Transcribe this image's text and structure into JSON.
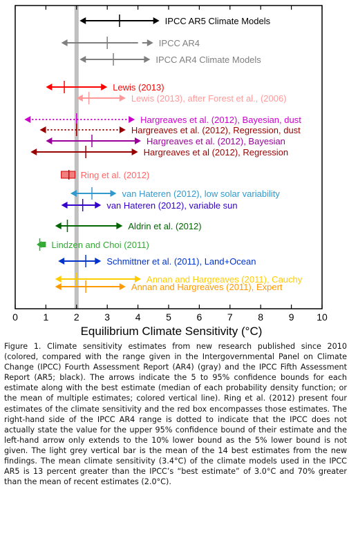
{
  "chart_data": {
    "type": "interval",
    "xlabel": "Equilibrium Climate Sensitivity (°C)",
    "xlim": [
      0,
      10
    ],
    "xticks": [
      "0",
      "1",
      "2",
      "3",
      "4",
      "5",
      "6",
      "7",
      "8",
      "9",
      "10"
    ],
    "reference_line": {
      "value": 2.0,
      "color": "#c0c0c0"
    },
    "estimates": [
      {
        "label": "IPCC AR5 Climate Models",
        "low": 2.1,
        "high": 4.7,
        "best": 3.4,
        "color": "#000000",
        "style": "solid"
      },
      {
        "label": "IPCC AR4",
        "low": 1.5,
        "high": 4.5,
        "best": 3.0,
        "color": "#7f7f7f",
        "style": "solid-dashed-right"
      },
      {
        "label": "IPCC AR4 Climate Models",
        "low": 2.1,
        "high": 4.4,
        "best": 3.2,
        "color": "#7f7f7f",
        "style": "solid"
      },
      {
        "label": "Lewis (2013)",
        "low": 1.0,
        "high": 3.0,
        "best": 1.6,
        "color": "#ff0000",
        "style": "solid"
      },
      {
        "label": "Lewis (2013), after Forest et al., (2006)",
        "low": 2.0,
        "high": 3.6,
        "best": 2.4,
        "color": "#ff9999",
        "style": "solid"
      },
      {
        "label": "Hargreaves et al. (2012), Bayesian, dust",
        "low": 0.3,
        "high": 3.9,
        "best": 2.0,
        "color": "#cc00cc",
        "style": "dotted"
      },
      {
        "label": "Hargreaves et al. (2012), Regression, dust",
        "low": 0.8,
        "high": 3.6,
        "best": 2.0,
        "color": "#990000",
        "style": "dotted"
      },
      {
        "label": "Hargreaves et al. (2012), Bayesian",
        "low": 1.0,
        "high": 4.1,
        "best": 2.5,
        "color": "#990099",
        "style": "solid"
      },
      {
        "label": "Hargreaves et al (2012), Regression",
        "low": 0.5,
        "high": 4.0,
        "best": 2.3,
        "color": "#990000",
        "style": "solid"
      },
      {
        "label": "Ring et al. (2012)",
        "low": 1.5,
        "high": 1.95,
        "best": 1.75,
        "color": "#ff6666",
        "style": "box"
      },
      {
        "label": "van Hateren (2012), low solar variability",
        "low": 1.8,
        "high": 3.3,
        "best": 2.5,
        "color": "#3399cc",
        "style": "solid"
      },
      {
        "label": "van Hateren (2012), variable sun",
        "low": 1.5,
        "high": 2.8,
        "best": 2.2,
        "color": "#3300cc",
        "style": "solid"
      },
      {
        "label": "Aldrin et al. (2012)",
        "low": 1.3,
        "high": 3.5,
        "best": 1.7,
        "color": "#006600",
        "style": "solid"
      },
      {
        "label": "Lindzen and Choi  (2011)",
        "low": 0.7,
        "high": 1.0,
        "best": 0.8,
        "color": "#33aa33",
        "style": "solid"
      },
      {
        "label": "Schmittner et al.  (2011), Land+Ocean",
        "low": 1.4,
        "high": 2.8,
        "best": 2.3,
        "color": "#0033cc",
        "style": "solid"
      },
      {
        "label": "Annan and Hargreaves (2011), Cauchy",
        "low": 1.3,
        "high": 4.1,
        "best": 2.0,
        "color": "#ffcc00",
        "style": "solid"
      },
      {
        "label": "Annan and Hargreaves (2011), Expert",
        "low": 1.3,
        "high": 3.6,
        "best": 2.3,
        "color": "#ff9900",
        "style": "solid"
      }
    ]
  },
  "caption": "Figure 1. Climate sensitivity estimates from new research published since 2010 (colored, compared with the range given in the Intergovernmental Panel on Climate Change (IPCC) Fourth Assessment Report (AR4) (gray) and the IPCC Fifth Assessment Report (AR5; black). The arrows indicate the 5 to 95% confidence bounds for each estimate along with the best estimate (median of each probability density function; or the mean of multiple estimates; colored vertical line). Ring et al. (2012) present four estimates of the climate sensitivity and the red box encompasses those estimates. The right-hand side of the IPCC AR4 range is dotted to indicate that the IPCC does not actually state the value for the upper 95% confidence bound of their estimate and the left-hand arrow only extends to the 10% lower bound as the 5% lower bound is not given. The light grey vertical bar is the mean of the 14 best estimates from the new findings. The mean climate sensitivity (3.4°C) of the climate models used in the IPCC AR5 is 13 percent greater than the IPCC’s “best estimate” of 3.0°C and 70% greater than the mean of recent estimates (2.0°C)."
}
